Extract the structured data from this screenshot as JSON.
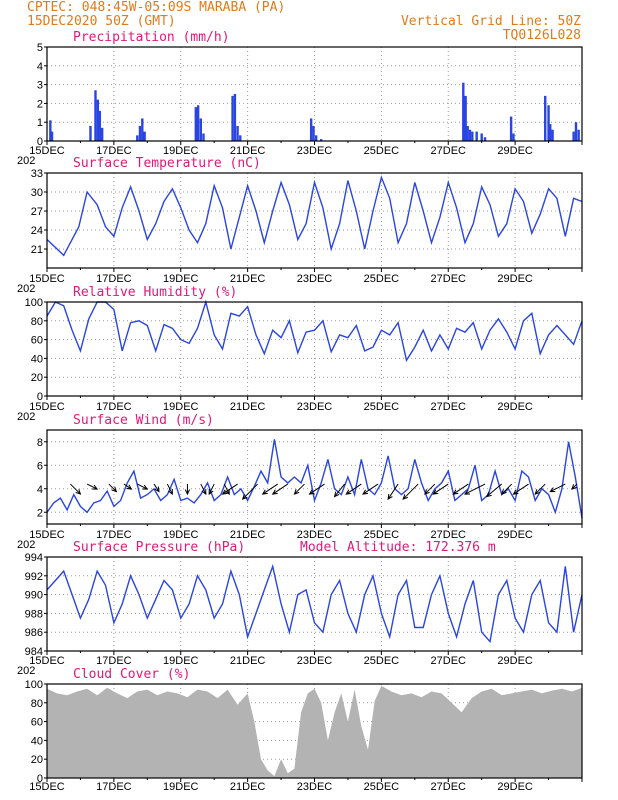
{
  "header": {
    "line1_left": "CPTEC:   048:45W-05:09S  MARABA (PA)",
    "line2_left": "15DEC2020 50Z (GMT)",
    "line1_right": "Vertical Grid Line: 50Z",
    "line2_right": "TQ0126L028"
  },
  "x_axis": {
    "labels": [
      "15DEC",
      "17DEC",
      "19DEC",
      "21DEC",
      "23DEC",
      "25DEC",
      "27DEC",
      "29DEC"
    ],
    "year_stub": "202"
  },
  "colors": {
    "header": "#e07b1a",
    "title": "#e0197a",
    "line": "#2a45e0",
    "bar": "#2a45e0",
    "cloud": "#b3b3b3",
    "grid": "#9a9a9a",
    "wind_arrow": "#000000"
  },
  "chart_data": [
    {
      "type": "bar",
      "title": "Precipitation (mm/h)",
      "ylim": [
        0,
        5
      ],
      "yticks": [
        0,
        1,
        2,
        3,
        4,
        5
      ],
      "values": [
        [
          0.1,
          1.1
        ],
        [
          0.15,
          0.5
        ],
        [
          1.3,
          0.8
        ],
        [
          1.45,
          2.7
        ],
        [
          1.52,
          2.2
        ],
        [
          1.58,
          1.6
        ],
        [
          1.65,
          0.7
        ],
        [
          2.7,
          0.3
        ],
        [
          2.78,
          0.8
        ],
        [
          2.85,
          1.2
        ],
        [
          2.92,
          0.5
        ],
        [
          4.45,
          1.8
        ],
        [
          4.52,
          1.9
        ],
        [
          4.6,
          1.2
        ],
        [
          4.68,
          0.4
        ],
        [
          5.55,
          2.4
        ],
        [
          5.62,
          2.5
        ],
        [
          5.7,
          0.8
        ],
        [
          5.78,
          0.3
        ],
        [
          7.9,
          1.2
        ],
        [
          7.97,
          0.8
        ],
        [
          8.05,
          0.3
        ],
        [
          8.2,
          0.1
        ],
        [
          12.45,
          3.1
        ],
        [
          12.52,
          2.4
        ],
        [
          12.58,
          0.8
        ],
        [
          12.65,
          0.6
        ],
        [
          12.72,
          0.5
        ],
        [
          12.85,
          0.5
        ],
        [
          13.0,
          0.4
        ],
        [
          13.1,
          0.2
        ],
        [
          13.88,
          1.3
        ],
        [
          13.95,
          0.4
        ],
        [
          14.9,
          2.4
        ],
        [
          15.0,
          1.9
        ],
        [
          15.05,
          0.9
        ],
        [
          15.12,
          0.6
        ],
        [
          15.75,
          0.5
        ],
        [
          15.82,
          1.0
        ],
        [
          15.9,
          0.6
        ]
      ]
    },
    {
      "type": "line",
      "title": "Surface Temperature (nC)",
      "ylim": [
        18,
        33
      ],
      "yticks": [
        21,
        24,
        27,
        30,
        33
      ],
      "x": [
        0,
        0.5,
        0.95,
        1.2,
        1.5,
        1.75,
        2.0,
        2.25,
        2.5,
        2.75,
        3.0,
        3.25,
        3.5,
        3.75,
        4.0,
        4.25,
        4.5,
        4.75,
        5.0,
        5.25,
        5.5,
        5.75,
        6.0,
        6.25,
        6.5,
        6.75,
        7.0,
        7.25,
        7.5,
        7.75,
        8.0,
        8.25,
        8.5,
        8.75,
        9.0,
        9.25,
        9.5,
        9.75,
        10.0,
        10.25,
        10.5,
        10.75,
        11.0,
        11.25,
        11.5,
        11.75,
        12.0,
        12.25,
        12.5,
        12.75,
        13.0,
        13.25,
        13.5,
        13.75,
        14.0,
        14.25,
        14.5,
        14.75,
        15.0,
        15.25,
        15.5,
        15.75,
        16.0
      ],
      "y": [
        22.5,
        20.0,
        24.5,
        30.0,
        28.0,
        24.5,
        23.0,
        27.5,
        30.8,
        27.0,
        22.5,
        25.0,
        28.5,
        30.5,
        27.5,
        24.0,
        22.0,
        25.0,
        31.0,
        27.5,
        21.0,
        26.0,
        31.0,
        27.0,
        22.0,
        27.0,
        31.5,
        28.0,
        22.5,
        25.0,
        31.5,
        27.5,
        21.0,
        25.0,
        31.8,
        27.0,
        21.0,
        27.0,
        32.3,
        29.0,
        22.0,
        25.0,
        31.5,
        27.0,
        22.0,
        26.0,
        31.5,
        27.5,
        22.0,
        25.0,
        30.8,
        28.0,
        23.0,
        25.0,
        30.5,
        28.5,
        23.5,
        26.5,
        30.5,
        29.0,
        23.0,
        29.0,
        28.5
      ]
    },
    {
      "type": "line",
      "title": "Relative Humidity (%)",
      "ylim": [
        0,
        100
      ],
      "yticks": [
        0,
        20,
        40,
        60,
        80,
        100
      ],
      "x": [
        0,
        0.25,
        0.5,
        0.75,
        1.0,
        1.25,
        1.5,
        1.75,
        2.0,
        2.25,
        2.5,
        2.75,
        3.0,
        3.25,
        3.5,
        3.75,
        4.0,
        4.25,
        4.5,
        4.75,
        5.0,
        5.25,
        5.5,
        5.75,
        6.0,
        6.25,
        6.5,
        6.75,
        7.0,
        7.25,
        7.5,
        7.75,
        8.0,
        8.25,
        8.5,
        8.75,
        9.0,
        9.25,
        9.5,
        9.75,
        10.0,
        10.25,
        10.5,
        10.75,
        11.0,
        11.25,
        11.5,
        11.75,
        12.0,
        12.25,
        12.5,
        12.75,
        13.0,
        13.25,
        13.5,
        13.75,
        14.0,
        14.25,
        14.5,
        14.75,
        15.0,
        15.25,
        15.5,
        15.75,
        16.0
      ],
      "y": [
        85,
        100,
        96,
        70,
        48,
        82,
        100,
        100,
        92,
        48,
        78,
        80,
        75,
        48,
        76,
        72,
        60,
        56,
        72,
        100,
        65,
        50,
        88,
        85,
        95,
        65,
        45,
        70,
        62,
        80,
        46,
        68,
        70,
        80,
        47,
        65,
        62,
        75,
        48,
        52,
        70,
        65,
        78,
        38,
        52,
        70,
        48,
        65,
        50,
        72,
        68,
        78,
        50,
        70,
        82,
        68,
        50,
        80,
        88,
        45,
        65,
        75,
        65,
        55,
        80
      ]
    },
    {
      "type": "line",
      "title": "Surface Wind (m/s)",
      "ylim": [
        1,
        9
      ],
      "yticks": [
        2,
        4,
        6,
        8
      ],
      "x": [
        0,
        0.2,
        0.4,
        0.6,
        0.8,
        1.0,
        1.2,
        1.4,
        1.6,
        1.8,
        2.0,
        2.2,
        2.4,
        2.6,
        2.8,
        3.0,
        3.2,
        3.4,
        3.6,
        3.8,
        4.0,
        4.2,
        4.4,
        4.6,
        4.8,
        5.0,
        5.2,
        5.4,
        5.6,
        5.8,
        6.0,
        6.2,
        6.4,
        6.6,
        6.8,
        7.0,
        7.2,
        7.4,
        7.6,
        7.8,
        8.0,
        8.2,
        8.4,
        8.6,
        8.8,
        9.0,
        9.2,
        9.4,
        9.6,
        9.8,
        10.0,
        10.2,
        10.4,
        10.6,
        10.8,
        11.0,
        11.2,
        11.4,
        11.6,
        11.8,
        12.0,
        12.2,
        12.4,
        12.6,
        12.8,
        13.0,
        13.2,
        13.4,
        13.6,
        13.8,
        14.0,
        14.2,
        14.4,
        14.6,
        14.8,
        15.0,
        15.2,
        15.4,
        15.6,
        15.8,
        16.0
      ],
      "y": [
        2.0,
        2.8,
        3.2,
        2.2,
        3.5,
        2.5,
        2.0,
        2.8,
        3.0,
        3.8,
        2.5,
        3.0,
        4.5,
        5.5,
        3.2,
        3.5,
        4.0,
        3.0,
        3.5,
        4.8,
        3.0,
        3.2,
        2.8,
        3.5,
        4.5,
        3.0,
        3.5,
        5.0,
        3.5,
        4.0,
        3.0,
        4.2,
        5.5,
        4.5,
        8.2,
        5.0,
        4.5,
        5.0,
        4.5,
        6.0,
        3.0,
        4.5,
        6.5,
        4.0,
        3.5,
        5.0,
        3.5,
        6.5,
        4.0,
        3.5,
        4.5,
        6.8,
        4.0,
        3.5,
        4.0,
        6.5,
        4.5,
        3.0,
        4.0,
        4.5,
        5.5,
        3.0,
        3.5,
        4.0,
        6.0,
        3.0,
        3.5,
        5.5,
        3.5,
        4.0,
        3.0,
        5.5,
        5.0,
        3.0,
        4.0,
        3.5,
        2.0,
        4.0,
        8.0,
        5.0,
        1.5
      ],
      "arrows_x": [
        0.7,
        1.2,
        1.85,
        2.3,
        2.7,
        3.2,
        3.6,
        4.2,
        4.6,
        5.0,
        5.3,
        5.7,
        6.3,
        6.9,
        7.2,
        7.7,
        8.3,
        8.9,
        9.4,
        9.9,
        10.5,
        11.1,
        11.6,
        12.0,
        12.6,
        13.1,
        13.6,
        13.9,
        14.4,
        14.9,
        15.5,
        15.85
      ],
      "arrows_u": [
        2,
        2,
        1.5,
        1.5,
        2,
        1,
        1,
        0,
        1,
        -1,
        1,
        -3,
        -3,
        -3,
        -3,
        -2,
        -3,
        -2,
        -3,
        -3,
        -2,
        -3,
        -2,
        -3,
        -3,
        -4,
        -3,
        -2,
        -3,
        -2,
        -3,
        -1
      ],
      "arrows_v": [
        -2,
        -1,
        -1.5,
        -1,
        -1,
        -1.5,
        -2,
        -2,
        -2,
        -2,
        -2,
        -2,
        -3,
        -2,
        -2,
        -2,
        -2,
        -2.5,
        -2,
        -2,
        -3,
        -3,
        -2,
        -2,
        -2,
        -2,
        -2.5,
        -2,
        -2,
        -2,
        -1.5,
        -1
      ]
    },
    {
      "type": "line",
      "title": "Surface Pressure (hPa)",
      "annotation": "Model Altitude: 172.376 m",
      "ylim": [
        984,
        994
      ],
      "yticks": [
        984,
        986,
        988,
        990,
        992,
        994
      ],
      "x": [
        0,
        0.25,
        0.5,
        0.75,
        1.0,
        1.25,
        1.5,
        1.75,
        2.0,
        2.25,
        2.5,
        2.75,
        3.0,
        3.25,
        3.5,
        3.75,
        4.0,
        4.25,
        4.5,
        4.75,
        5.0,
        5.25,
        5.5,
        5.75,
        6.0,
        6.25,
        6.5,
        6.75,
        7.0,
        7.25,
        7.5,
        7.75,
        8.0,
        8.25,
        8.5,
        8.75,
        9.0,
        9.25,
        9.5,
        9.75,
        10.0,
        10.25,
        10.5,
        10.75,
        11.0,
        11.25,
        11.5,
        11.75,
        12.0,
        12.25,
        12.5,
        12.75,
        13.0,
        13.25,
        13.5,
        13.75,
        14.0,
        14.25,
        14.5,
        14.75,
        15.0,
        15.25,
        15.5,
        15.75,
        16.0
      ],
      "y": [
        990.5,
        991.5,
        992.5,
        990.0,
        987.5,
        989.5,
        992.5,
        991.0,
        987.0,
        989.0,
        992.0,
        990.0,
        987.5,
        989.5,
        991.5,
        990.5,
        987.5,
        989.0,
        992.0,
        990.5,
        987.5,
        989.0,
        992.5,
        990.0,
        985.5,
        988.0,
        990.5,
        993.0,
        989.0,
        986.0,
        990.0,
        990.5,
        987.0,
        986.0,
        990.0,
        991.5,
        988.0,
        986.0,
        990.0,
        992.0,
        988.0,
        985.5,
        990.0,
        991.5,
        986.5,
        986.5,
        990.0,
        992.0,
        988.0,
        985.5,
        989.0,
        991.5,
        986.0,
        985.0,
        990.0,
        991.5,
        987.5,
        986.0,
        990.0,
        991.5,
        987.0,
        986.0,
        993.0,
        986.0,
        990.0
      ]
    },
    {
      "type": "area",
      "title": "Cloud Cover (%)",
      "ylim": [
        0,
        100
      ],
      "yticks": [
        0,
        20,
        40,
        60,
        80,
        100
      ],
      "x": [
        0,
        0.3,
        0.6,
        0.9,
        1.2,
        1.5,
        1.8,
        2.1,
        2.4,
        2.7,
        3.0,
        3.3,
        3.6,
        3.9,
        4.2,
        4.5,
        4.8,
        5.1,
        5.4,
        5.7,
        6.0,
        6.2,
        6.4,
        6.6,
        6.8,
        7.0,
        7.2,
        7.4,
        7.6,
        7.8,
        8.0,
        8.2,
        8.4,
        8.6,
        8.8,
        9.0,
        9.2,
        9.4,
        9.6,
        9.8,
        10.0,
        10.3,
        10.6,
        10.9,
        11.2,
        11.5,
        11.8,
        12.1,
        12.4,
        12.7,
        13.0,
        13.3,
        13.6,
        13.9,
        14.2,
        14.5,
        14.8,
        15.1,
        15.4,
        15.7,
        16.0
      ],
      "y": [
        95,
        90,
        88,
        92,
        95,
        88,
        96,
        90,
        85,
        92,
        94,
        88,
        92,
        90,
        86,
        94,
        92,
        85,
        94,
        78,
        90,
        60,
        20,
        8,
        2,
        20,
        5,
        10,
        70,
        90,
        95,
        80,
        40,
        70,
        90,
        60,
        94,
        55,
        30,
        82,
        98,
        92,
        88,
        90,
        86,
        92,
        90,
        80,
        70,
        85,
        92,
        95,
        88,
        90,
        92,
        94,
        90,
        93,
        95,
        92,
        96
      ]
    }
  ]
}
